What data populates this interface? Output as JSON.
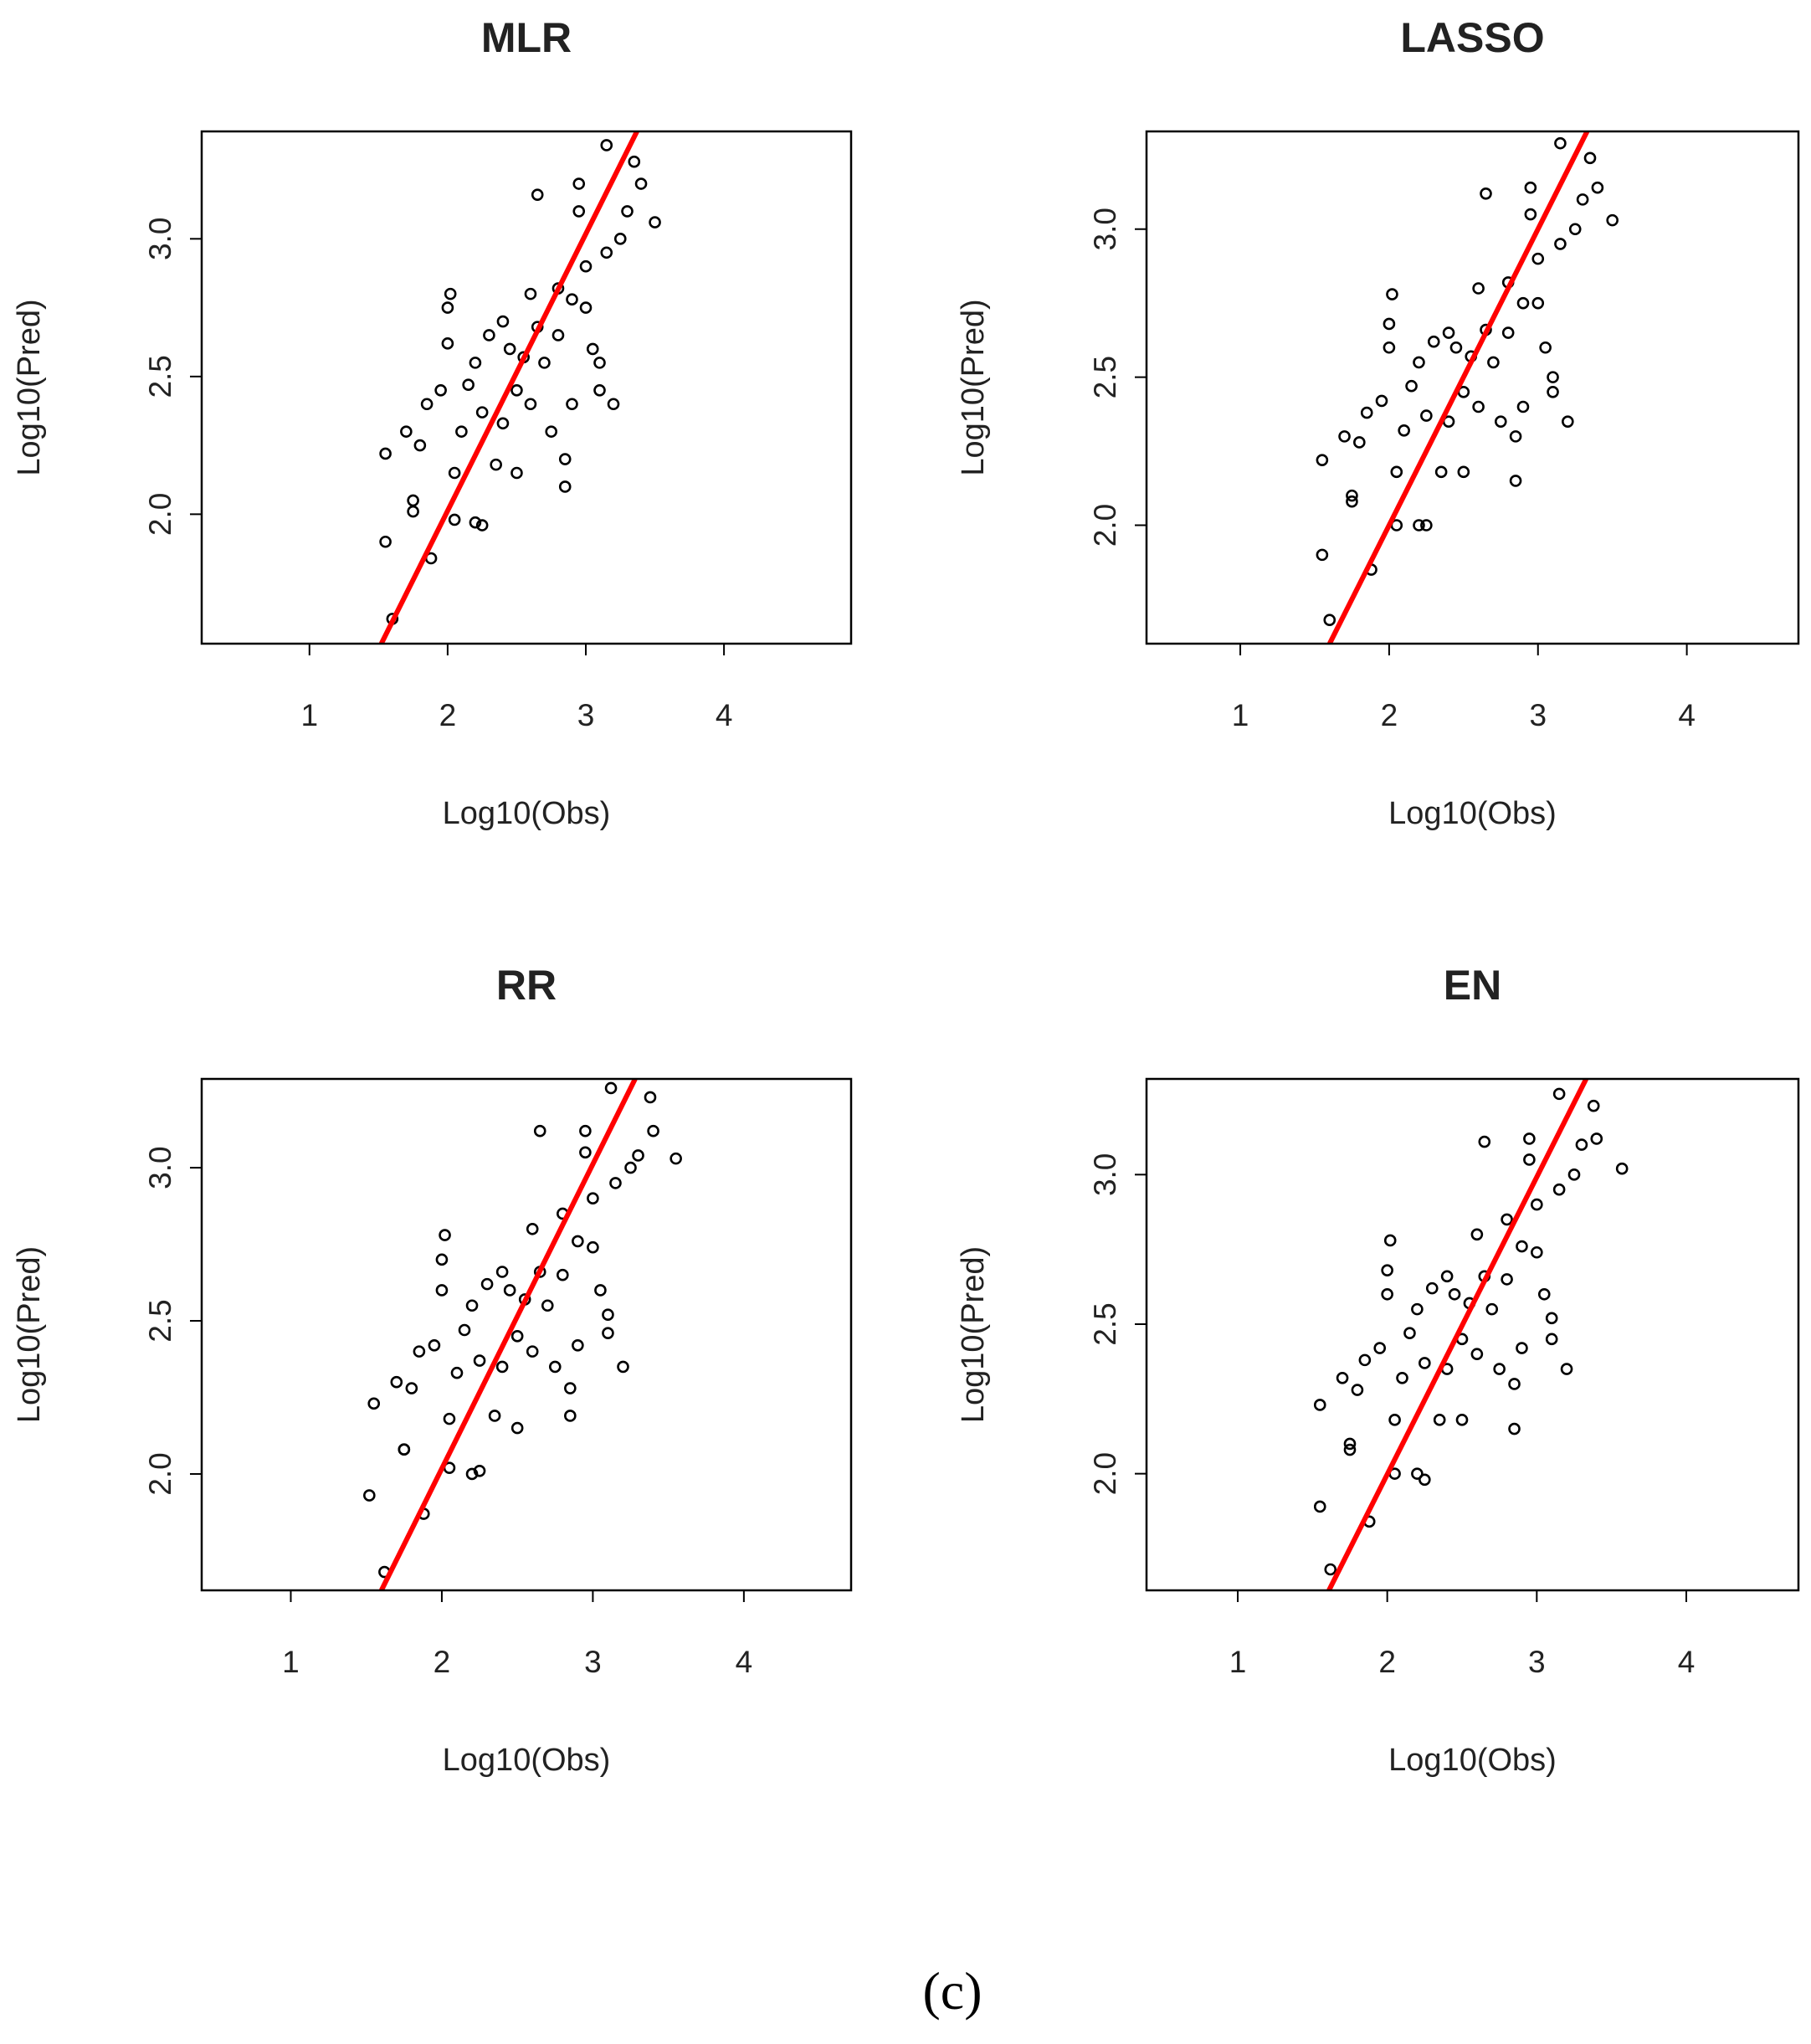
{
  "caption": "(c)",
  "chart_data": [
    {
      "type": "scatter",
      "title": "MLR",
      "x_label": "Log10(Obs)",
      "y_label": "Log10(Pred)",
      "xlim": [
        0.22,
        4.92
      ],
      "ylim": [
        1.53,
        3.39
      ],
      "xticks": [
        1,
        2,
        3,
        4
      ],
      "yticks": [
        {
          "value": 2,
          "label": "2.0"
        },
        {
          "value": 2.5,
          "label": "2.5"
        },
        {
          "value": 3,
          "label": "3.0"
        }
      ],
      "color": "#000000",
      "x": [
        1.55,
        1.6,
        1.55,
        1.7,
        1.75,
        1.75,
        1.8,
        1.88,
        1.85,
        1.95,
        2.0,
        2.0,
        2.02,
        2.05,
        2.05,
        2.1,
        2.15,
        2.2,
        2.2,
        2.25,
        2.25,
        2.3,
        2.35,
        2.4,
        2.4,
        2.45,
        2.5,
        2.5,
        2.55,
        2.6,
        2.6,
        2.65,
        2.65,
        2.7,
        2.75,
        2.8,
        2.8,
        2.85,
        2.85,
        2.9,
        2.9,
        2.95,
        2.95,
        3.0,
        3.05,
        3.1,
        3.15,
        3.15,
        3.2,
        3.25,
        3.3,
        3.35,
        3.4,
        3.5,
        3.1,
        3.0
      ],
      "values": [
        1.9,
        1.62,
        2.22,
        2.3,
        2.05,
        2.01,
        2.25,
        1.84,
        2.4,
        2.45,
        2.62,
        2.75,
        2.8,
        2.15,
        1.98,
        2.3,
        2.47,
        2.55,
        1.97,
        2.37,
        1.96,
        2.65,
        2.18,
        2.7,
        2.33,
        2.6,
        2.45,
        2.15,
        2.57,
        2.8,
        2.4,
        2.68,
        3.16,
        2.55,
        2.3,
        2.65,
        2.82,
        2.1,
        2.2,
        2.78,
        2.4,
        3.1,
        3.2,
        2.9,
        2.6,
        2.45,
        3.34,
        2.95,
        2.4,
        3.0,
        3.1,
        3.28,
        3.2,
        3.06,
        2.55,
        2.75
      ],
      "fit_line": {
        "color": "#ff0000",
        "x": [
          1.52,
          3.37
        ],
        "values": [
          1.53,
          3.39
        ]
      }
    },
    {
      "type": "scatter",
      "title": "LASSO",
      "x_label": "Log10(Obs)",
      "y_label": "Log10(Pred)",
      "xlim": [
        0.37,
        4.75
      ],
      "ylim": [
        1.6,
        3.33
      ],
      "xticks": [
        1,
        2,
        3,
        4
      ],
      "yticks": [
        {
          "value": 2,
          "label": "2.0"
        },
        {
          "value": 2.5,
          "label": "2.5"
        },
        {
          "value": 3,
          "label": "3.0"
        }
      ],
      "color": "#000000",
      "x": [
        1.55,
        1.6,
        1.55,
        1.7,
        1.75,
        1.75,
        1.8,
        1.88,
        1.85,
        1.95,
        2.0,
        2.0,
        2.02,
        2.05,
        2.05,
        2.1,
        2.15,
        2.2,
        2.2,
        2.25,
        2.25,
        2.3,
        2.35,
        2.4,
        2.4,
        2.45,
        2.5,
        2.5,
        2.55,
        2.6,
        2.6,
        2.65,
        2.65,
        2.7,
        2.75,
        2.8,
        2.8,
        2.85,
        2.85,
        2.9,
        2.9,
        2.95,
        2.95,
        3.0,
        3.05,
        3.1,
        3.15,
        3.15,
        3.2,
        3.25,
        3.3,
        3.35,
        3.4,
        3.5,
        3.1,
        3.0
      ],
      "values": [
        1.9,
        1.68,
        2.22,
        2.3,
        2.08,
        2.1,
        2.28,
        1.85,
        2.38,
        2.42,
        2.6,
        2.68,
        2.78,
        2.18,
        2.0,
        2.32,
        2.47,
        2.55,
        2.0,
        2.37,
        2.0,
        2.62,
        2.18,
        2.65,
        2.35,
        2.6,
        2.45,
        2.18,
        2.57,
        2.8,
        2.4,
        2.66,
        3.12,
        2.55,
        2.35,
        2.65,
        2.82,
        2.15,
        2.3,
        2.75,
        2.4,
        3.05,
        3.14,
        2.9,
        2.6,
        2.45,
        3.29,
        2.95,
        2.35,
        3.0,
        3.1,
        3.24,
        3.14,
        3.03,
        2.5,
        2.75
      ],
      "fit_line": {
        "color": "#ff0000",
        "x": [
          1.6,
          3.33
        ],
        "values": [
          1.6,
          3.33
        ]
      }
    },
    {
      "type": "scatter",
      "title": "RR",
      "x_label": "Log10(Obs)",
      "y_label": "Log10(Pred)",
      "xlim": [
        0.41,
        4.71
      ],
      "ylim": [
        1.62,
        3.29
      ],
      "xticks": [
        1,
        2,
        3,
        4
      ],
      "yticks": [
        {
          "value": 2,
          "label": "2.0"
        },
        {
          "value": 2.5,
          "label": "2.5"
        },
        {
          "value": 3,
          "label": "3.0"
        }
      ],
      "color": "#000000",
      "x": [
        1.52,
        1.62,
        1.55,
        1.7,
        1.75,
        1.75,
        1.8,
        1.88,
        1.85,
        1.95,
        2.0,
        2.0,
        2.02,
        2.05,
        2.05,
        2.1,
        2.15,
        2.2,
        2.2,
        2.25,
        2.25,
        2.3,
        2.35,
        2.4,
        2.4,
        2.45,
        2.5,
        2.5,
        2.55,
        2.6,
        2.6,
        2.65,
        2.65,
        2.7,
        2.75,
        2.8,
        2.8,
        2.85,
        2.85,
        2.9,
        2.9,
        2.95,
        2.95,
        3.0,
        3.05,
        3.1,
        3.12,
        3.15,
        3.2,
        3.25,
        3.3,
        3.38,
        3.4,
        3.55,
        3.1,
        3.0
      ],
      "values": [
        1.93,
        1.68,
        2.23,
        2.3,
        2.08,
        2.08,
        2.28,
        1.87,
        2.4,
        2.42,
        2.6,
        2.7,
        2.78,
        2.18,
        2.02,
        2.33,
        2.47,
        2.55,
        2.0,
        2.37,
        2.01,
        2.62,
        2.19,
        2.66,
        2.35,
        2.6,
        2.45,
        2.15,
        2.57,
        2.8,
        2.4,
        2.66,
        3.12,
        2.55,
        2.35,
        2.65,
        2.85,
        2.19,
        2.28,
        2.76,
        2.42,
        3.05,
        3.12,
        2.9,
        2.6,
        2.46,
        3.26,
        2.95,
        2.35,
        3.0,
        3.04,
        3.23,
        3.12,
        3.03,
        2.52,
        2.74
      ],
      "fit_line": {
        "color": "#ff0000",
        "x": [
          1.6,
          3.28
        ],
        "values": [
          1.62,
          3.29
        ]
      }
    },
    {
      "type": "scatter",
      "title": "EN",
      "x_label": "Log10(Obs)",
      "y_label": "Log10(Pred)",
      "xlim": [
        0.39,
        4.75
      ],
      "ylim": [
        1.61,
        3.32
      ],
      "xticks": [
        1,
        2,
        3,
        4
      ],
      "yticks": [
        {
          "value": 2,
          "label": "2.0"
        },
        {
          "value": 2.5,
          "label": "2.5"
        },
        {
          "value": 3,
          "label": "3.0"
        }
      ],
      "color": "#000000",
      "x": [
        1.55,
        1.62,
        1.55,
        1.7,
        1.75,
        1.75,
        1.8,
        1.88,
        1.85,
        1.95,
        2.0,
        2.0,
        2.02,
        2.05,
        2.05,
        2.1,
        2.15,
        2.2,
        2.2,
        2.25,
        2.25,
        2.3,
        2.35,
        2.4,
        2.4,
        2.45,
        2.5,
        2.5,
        2.55,
        2.6,
        2.6,
        2.65,
        2.65,
        2.7,
        2.75,
        2.8,
        2.8,
        2.85,
        2.85,
        2.9,
        2.9,
        2.95,
        2.95,
        3.0,
        3.05,
        3.1,
        3.15,
        3.15,
        3.2,
        3.25,
        3.3,
        3.38,
        3.4,
        3.57,
        3.1,
        3.0
      ],
      "values": [
        1.89,
        1.68,
        2.23,
        2.32,
        2.1,
        2.08,
        2.28,
        1.84,
        2.38,
        2.42,
        2.6,
        2.68,
        2.78,
        2.18,
        2.0,
        2.32,
        2.47,
        2.55,
        2.0,
        2.37,
        1.98,
        2.62,
        2.18,
        2.66,
        2.35,
        2.6,
        2.45,
        2.18,
        2.57,
        2.8,
        2.4,
        2.66,
        3.11,
        2.55,
        2.35,
        2.65,
        2.85,
        2.15,
        2.3,
        2.76,
        2.42,
        3.05,
        3.12,
        2.9,
        2.6,
        2.45,
        3.27,
        2.95,
        2.35,
        3.0,
        3.1,
        3.23,
        3.12,
        3.02,
        2.52,
        2.74
      ],
      "fit_line": {
        "color": "#ff0000",
        "x": [
          1.61,
          3.33
        ],
        "values": [
          1.61,
          3.32
        ]
      }
    }
  ]
}
